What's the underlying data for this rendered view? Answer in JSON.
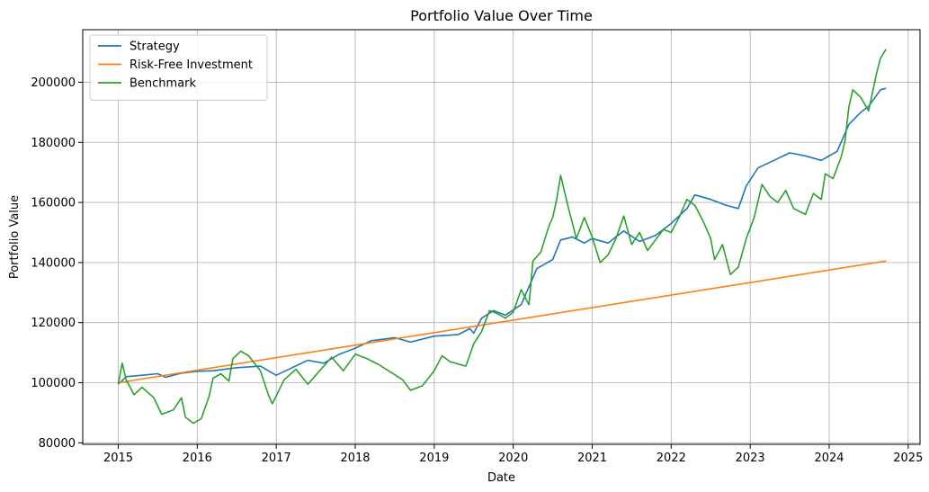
{
  "chart_data": {
    "type": "line",
    "title": "Portfolio Value Over Time",
    "xlabel": "Date",
    "ylabel": "Portfolio Value",
    "xlim": [
      2014.55,
      2025.15
    ],
    "ylim": [
      79500,
      217500
    ],
    "x_ticks": [
      2015,
      2016,
      2017,
      2018,
      2019,
      2020,
      2021,
      2022,
      2023,
      2024,
      2025
    ],
    "y_ticks": [
      80000,
      100000,
      120000,
      140000,
      160000,
      180000,
      200000
    ],
    "grid": true,
    "legend": "top-left",
    "series": [
      {
        "name": "Strategy",
        "color": "#1f77b4",
        "points": [
          [
            2015.0,
            99500
          ],
          [
            2015.1,
            102000
          ],
          [
            2015.3,
            102500
          ],
          [
            2015.5,
            103000
          ],
          [
            2015.6,
            101800
          ],
          [
            2015.8,
            103200
          ],
          [
            2016.0,
            103800
          ],
          [
            2016.2,
            104000
          ],
          [
            2016.5,
            105000
          ],
          [
            2016.8,
            105500
          ],
          [
            2016.9,
            104000
          ],
          [
            2017.0,
            102500
          ],
          [
            2017.2,
            105000
          ],
          [
            2017.4,
            107500
          ],
          [
            2017.6,
            106500
          ],
          [
            2017.8,
            109500
          ],
          [
            2018.0,
            111500
          ],
          [
            2018.2,
            114000
          ],
          [
            2018.5,
            115000
          ],
          [
            2018.7,
            113500
          ],
          [
            2019.0,
            115500
          ],
          [
            2019.3,
            116000
          ],
          [
            2019.45,
            118000
          ],
          [
            2019.5,
            116500
          ],
          [
            2019.6,
            121500
          ],
          [
            2019.75,
            124000
          ],
          [
            2019.9,
            122500
          ],
          [
            2020.1,
            126000
          ],
          [
            2020.3,
            138000
          ],
          [
            2020.5,
            141000
          ],
          [
            2020.6,
            147500
          ],
          [
            2020.75,
            148500
          ],
          [
            2020.9,
            146500
          ],
          [
            2021.0,
            148000
          ],
          [
            2021.2,
            146500
          ],
          [
            2021.4,
            150500
          ],
          [
            2021.6,
            147000
          ],
          [
            2021.8,
            149000
          ],
          [
            2022.0,
            153000
          ],
          [
            2022.2,
            158000
          ],
          [
            2022.3,
            162500
          ],
          [
            2022.5,
            161000
          ],
          [
            2022.7,
            159000
          ],
          [
            2022.85,
            158000
          ],
          [
            2022.95,
            165500
          ],
          [
            2023.1,
            171500
          ],
          [
            2023.3,
            174000
          ],
          [
            2023.5,
            176500
          ],
          [
            2023.7,
            175500
          ],
          [
            2023.9,
            174000
          ],
          [
            2024.1,
            177000
          ],
          [
            2024.25,
            186000
          ],
          [
            2024.4,
            190000
          ],
          [
            2024.5,
            192000
          ],
          [
            2024.65,
            197500
          ],
          [
            2024.72,
            198000
          ]
        ]
      },
      {
        "name": "Risk-Free Investment",
        "color": "#ff7f0e",
        "points": [
          [
            2015.0,
            100000
          ],
          [
            2024.72,
            140500
          ]
        ]
      },
      {
        "name": "Benchmark",
        "color": "#2ca02c",
        "points": [
          [
            2015.0,
            99500
          ],
          [
            2015.05,
            106500
          ],
          [
            2015.1,
            101000
          ],
          [
            2015.2,
            96000
          ],
          [
            2015.3,
            98500
          ],
          [
            2015.45,
            95000
          ],
          [
            2015.55,
            89500
          ],
          [
            2015.7,
            91000
          ],
          [
            2015.8,
            95000
          ],
          [
            2015.85,
            88500
          ],
          [
            2015.95,
            86500
          ],
          [
            2016.05,
            88000
          ],
          [
            2016.15,
            95500
          ],
          [
            2016.2,
            101500
          ],
          [
            2016.3,
            103000
          ],
          [
            2016.4,
            100500
          ],
          [
            2016.45,
            108000
          ],
          [
            2016.55,
            110500
          ],
          [
            2016.65,
            109000
          ],
          [
            2016.8,
            104000
          ],
          [
            2016.9,
            96000
          ],
          [
            2016.95,
            93000
          ],
          [
            2017.1,
            101000
          ],
          [
            2017.25,
            104500
          ],
          [
            2017.4,
            99500
          ],
          [
            2017.55,
            104000
          ],
          [
            2017.7,
            108500
          ],
          [
            2017.85,
            104000
          ],
          [
            2018.0,
            109500
          ],
          [
            2018.15,
            108000
          ],
          [
            2018.3,
            106000
          ],
          [
            2018.45,
            103500
          ],
          [
            2018.6,
            101000
          ],
          [
            2018.7,
            97500
          ],
          [
            2018.85,
            99000
          ],
          [
            2019.0,
            104000
          ],
          [
            2019.1,
            109000
          ],
          [
            2019.2,
            107000
          ],
          [
            2019.4,
            105500
          ],
          [
            2019.5,
            113000
          ],
          [
            2019.6,
            117000
          ],
          [
            2019.7,
            124000
          ],
          [
            2019.8,
            123000
          ],
          [
            2019.9,
            121500
          ],
          [
            2020.0,
            123500
          ],
          [
            2020.1,
            131000
          ],
          [
            2020.2,
            126000
          ],
          [
            2020.25,
            140500
          ],
          [
            2020.35,
            143500
          ],
          [
            2020.45,
            152000
          ],
          [
            2020.5,
            155000
          ],
          [
            2020.55,
            161000
          ],
          [
            2020.6,
            169000
          ],
          [
            2020.7,
            158000
          ],
          [
            2020.8,
            148000
          ],
          [
            2020.9,
            155000
          ],
          [
            2021.0,
            148500
          ],
          [
            2021.1,
            140000
          ],
          [
            2021.2,
            142500
          ],
          [
            2021.3,
            148000
          ],
          [
            2021.4,
            155500
          ],
          [
            2021.5,
            146000
          ],
          [
            2021.6,
            150000
          ],
          [
            2021.7,
            144000
          ],
          [
            2021.8,
            147500
          ],
          [
            2021.9,
            151000
          ],
          [
            2022.0,
            150000
          ],
          [
            2022.1,
            155000
          ],
          [
            2022.2,
            161000
          ],
          [
            2022.3,
            159000
          ],
          [
            2022.4,
            154000
          ],
          [
            2022.5,
            148000
          ],
          [
            2022.55,
            141000
          ],
          [
            2022.65,
            146000
          ],
          [
            2022.75,
            136000
          ],
          [
            2022.85,
            138500
          ],
          [
            2022.95,
            148000
          ],
          [
            2023.05,
            155000
          ],
          [
            2023.15,
            166000
          ],
          [
            2023.25,
            162000
          ],
          [
            2023.35,
            160000
          ],
          [
            2023.45,
            164000
          ],
          [
            2023.55,
            158000
          ],
          [
            2023.7,
            156000
          ],
          [
            2023.8,
            163000
          ],
          [
            2023.9,
            161000
          ],
          [
            2023.95,
            169500
          ],
          [
            2024.05,
            168000
          ],
          [
            2024.15,
            175000
          ],
          [
            2024.2,
            180500
          ],
          [
            2024.25,
            192000
          ],
          [
            2024.3,
            197500
          ],
          [
            2024.4,
            195000
          ],
          [
            2024.5,
            190500
          ],
          [
            2024.6,
            203000
          ],
          [
            2024.65,
            208000
          ],
          [
            2024.72,
            211000
          ]
        ]
      }
    ]
  }
}
